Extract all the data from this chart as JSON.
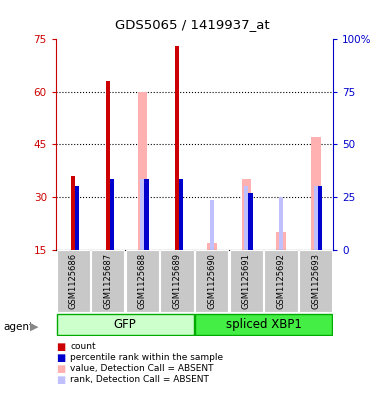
{
  "title": "GDS5065 / 1419937_at",
  "samples": [
    "GSM1125686",
    "GSM1125687",
    "GSM1125688",
    "GSM1125689",
    "GSM1125690",
    "GSM1125691",
    "GSM1125692",
    "GSM1125693"
  ],
  "count_values": [
    36,
    63,
    null,
    73,
    null,
    null,
    null,
    null
  ],
  "percentile_values": [
    33,
    35,
    35,
    35,
    null,
    31,
    null,
    33
  ],
  "absent_value_bars": [
    null,
    null,
    60,
    null,
    17,
    35,
    20,
    47
  ],
  "absent_rank_bars": [
    null,
    null,
    35,
    null,
    29,
    33,
    30,
    33
  ],
  "ylim_left": [
    15,
    75
  ],
  "ylim_right": [
    0,
    100
  ],
  "yticks_left": [
    15,
    30,
    45,
    60,
    75
  ],
  "yticks_right": [
    0,
    25,
    50,
    75,
    100
  ],
  "yticklabels_right": [
    "0",
    "25",
    "50",
    "75",
    "100%"
  ],
  "left_color": "#cc0000",
  "right_color": "#0000cc",
  "count_color": "#cc0000",
  "percentile_color": "#0000cc",
  "absent_value_color": "#ffb0b0",
  "absent_rank_color": "#c0c0ff",
  "background_color": "#ffffff",
  "gfp_color": "#ccffcc",
  "xbp1_color": "#44ee44",
  "group_border": "#00aa00",
  "sample_bg": "#c8c8c8",
  "legend_items": [
    {
      "color": "#cc0000",
      "label": "count"
    },
    {
      "color": "#0000cc",
      "label": "percentile rank within the sample"
    },
    {
      "color": "#ffb0b0",
      "label": "value, Detection Call = ABSENT"
    },
    {
      "color": "#c0c0ff",
      "label": "rank, Detection Call = ABSENT"
    }
  ]
}
